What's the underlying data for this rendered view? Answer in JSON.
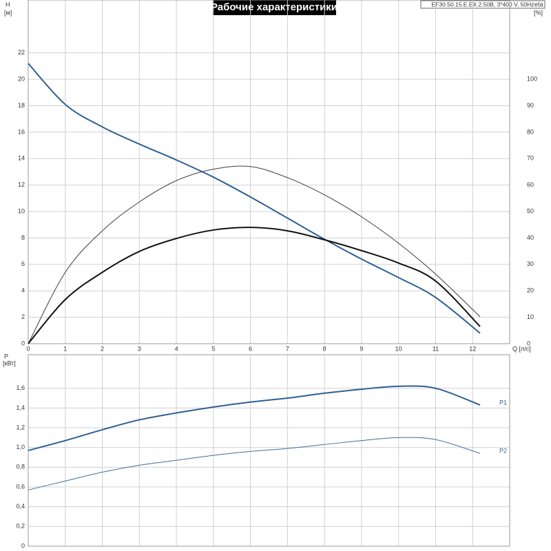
{
  "chart_data": [
    {
      "type": "line",
      "title": "Рабочие характеристики",
      "subtitle": "EF30.50.15.E.EX.2.50B, 3*400 V, 50Hz",
      "xlabel": "Q [л/с]",
      "ylabel": "H",
      "yunit": "[м]",
      "y2label": "eta",
      "y2unit": "[%]",
      "x": [
        0,
        1,
        2,
        3,
        4,
        5,
        6,
        7,
        8,
        9,
        10,
        11,
        12.2
      ],
      "xlim": [
        0,
        13
      ],
      "xticks": [
        0,
        1,
        2,
        3,
        4,
        5,
        6,
        7,
        8,
        9,
        10,
        11,
        12
      ],
      "ylim": [
        0,
        26
      ],
      "yticks": [
        0,
        2,
        4,
        6,
        8,
        10,
        12,
        14,
        16,
        18,
        20,
        22
      ],
      "y2lim": [
        0,
        130
      ],
      "y2ticks": [
        0,
        10,
        20,
        30,
        40,
        50,
        60,
        70,
        80,
        90,
        100
      ],
      "grid": true,
      "series": [
        {
          "color": "#2b5f93",
          "values": [
            21.2,
            18.1,
            16.4,
            15.1,
            13.9,
            12.6,
            11.1,
            9.5,
            7.9,
            6.4,
            5.0,
            3.5,
            0.8
          ]
        },
        {
          "color": "#3a3a3a",
          "axis": "y2",
          "values": [
            0,
            27,
            42.7,
            53.6,
            61.7,
            66,
            67,
            62.8,
            56.3,
            48,
            38,
            26.3,
            10.2
          ]
        },
        {
          "color": "#111111",
          "axis": "y2",
          "values": [
            0,
            16.7,
            27,
            34.9,
            39.8,
            43,
            44,
            42.7,
            39.3,
            35.2,
            30.5,
            23.7,
            6.5
          ]
        }
      ]
    },
    {
      "type": "line",
      "ylabel": "P",
      "yunit": "[кВт]",
      "x": [
        0,
        1,
        2,
        3,
        4,
        5,
        6,
        7,
        8,
        9,
        10,
        11,
        12.2
      ],
      "xlim": [
        0,
        13
      ],
      "ylim": [
        0,
        1.94
      ],
      "yticks": [
        0,
        {
          "value": 0.2,
          "label": "0,2"
        },
        {
          "value": 0.4,
          "label": "0,4"
        },
        {
          "value": 0.6,
          "label": "0,6"
        },
        {
          "value": 0.8,
          "label": "0,8"
        },
        {
          "value": 1.0,
          "label": "1,0"
        },
        {
          "value": 1.2,
          "label": "1,2"
        },
        {
          "value": 1.4,
          "label": "1,4"
        },
        {
          "value": 1.6,
          "label": "1,6"
        }
      ],
      "grid": true,
      "series": [
        {
          "name": "P1",
          "color": "#2b5f93",
          "values": [
            0.97,
            1.07,
            1.18,
            1.28,
            1.35,
            1.41,
            1.46,
            1.5,
            1.55,
            1.59,
            1.62,
            1.6,
            1.43
          ]
        },
        {
          "name": "P2",
          "color": "#3d6d9e",
          "values": [
            0.57,
            0.66,
            0.75,
            0.82,
            0.87,
            0.92,
            0.96,
            0.99,
            1.03,
            1.07,
            1.1,
            1.08,
            0.94
          ]
        }
      ]
    }
  ]
}
